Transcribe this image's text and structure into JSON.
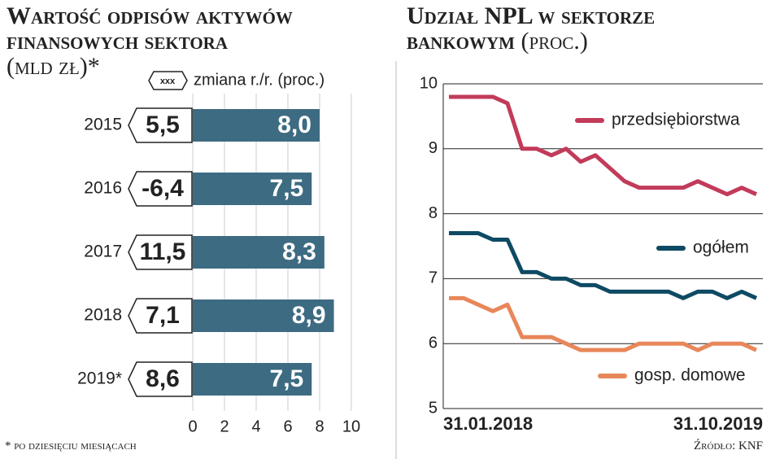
{
  "chart_data": [
    {
      "type": "hbar",
      "title": "Wartość odpisów aktywów finansowych sektora",
      "subtitle": "(mld zł)*",
      "categories": [
        "2015",
        "2016",
        "2017",
        "2018",
        "2019*"
      ],
      "values": [
        8.0,
        7.5,
        8.3,
        8.9,
        7.5
      ],
      "value_labels": [
        "8,0",
        "7,5",
        "8,3",
        "8,9",
        "7,5"
      ],
      "color": "#3d6b82",
      "change": {
        "legend_symbol": "xxx",
        "label": "zmiana r./r. (proc.)",
        "values": [
          5.5,
          -6.4,
          11.5,
          7.1,
          8.6
        ],
        "value_labels": [
          "5,5",
          "-6,4",
          "11,5",
          "7,1",
          "8,6"
        ]
      },
      "xlim": [
        0,
        10
      ],
      "xticks": [
        0,
        2,
        4,
        6,
        8,
        10
      ],
      "grid": true,
      "footnote": "* po dziesięciu miesiącach"
    },
    {
      "type": "line",
      "title": "Udział NPL w sektorze bankowym",
      "subtitle": "(proc.)",
      "categories": [
        "31.01.2018",
        null,
        null,
        null,
        null,
        null,
        null,
        null,
        null,
        null,
        null,
        null,
        null,
        null,
        null,
        null,
        null,
        null,
        null,
        null,
        null,
        "31.10.2019"
      ],
      "series": [
        {
          "name": "przedsiębiorstwa",
          "color": "#c23b5a",
          "values": [
            9.8,
            9.8,
            9.8,
            9.8,
            9.7,
            9.0,
            9.0,
            8.9,
            9.0,
            8.8,
            8.9,
            8.7,
            8.5,
            8.4,
            8.4,
            8.4,
            8.4,
            8.5,
            8.4,
            8.3,
            8.4,
            8.3
          ]
        },
        {
          "name": "ogółem",
          "color": "#0e4a63",
          "values": [
            7.7,
            7.7,
            7.7,
            7.6,
            7.6,
            7.1,
            7.1,
            7.0,
            7.0,
            6.9,
            6.9,
            6.8,
            6.8,
            6.8,
            6.8,
            6.8,
            6.7,
            6.8,
            6.8,
            6.7,
            6.8,
            6.7
          ]
        },
        {
          "name": "gosp. domowe",
          "color": "#e8875a",
          "values": [
            6.7,
            6.7,
            6.6,
            6.5,
            6.6,
            6.1,
            6.1,
            6.1,
            6.0,
            5.9,
            5.9,
            5.9,
            5.9,
            6.0,
            6.0,
            6.0,
            6.0,
            5.9,
            6.0,
            6.0,
            6.0,
            5.9
          ]
        }
      ],
      "ylim": [
        5,
        10
      ],
      "yticks": [
        5,
        6,
        7,
        8,
        9,
        10
      ],
      "grid": true,
      "source": "Źródło: KNF"
    }
  ]
}
